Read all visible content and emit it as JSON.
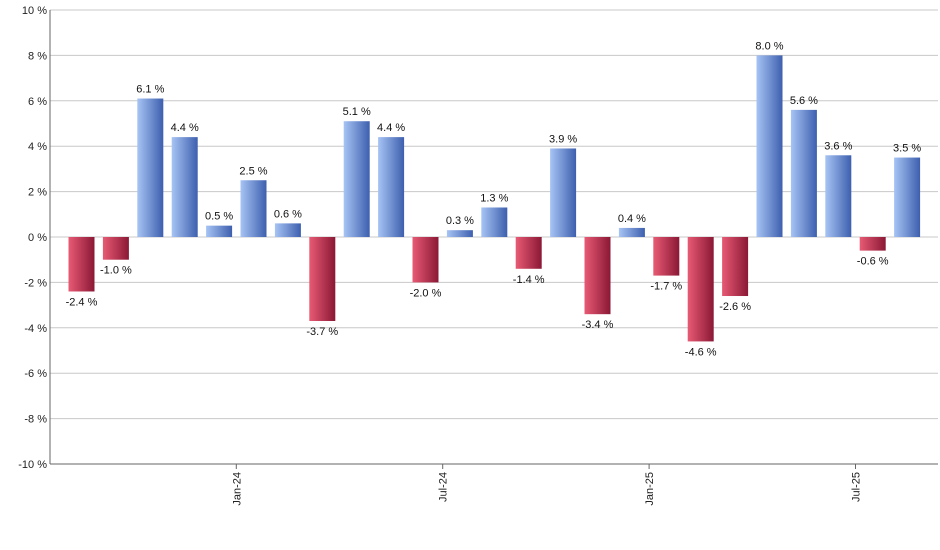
{
  "chart_data": {
    "type": "bar",
    "title": "",
    "xlabel": "",
    "ylabel": "",
    "ylim": [
      -10,
      10
    ],
    "y_ticks": [
      10,
      8,
      6,
      4,
      2,
      0,
      -2,
      -4,
      -6,
      -8,
      -10
    ],
    "y_tick_labels": [
      "10 %",
      "8 %",
      "6 %",
      "4 %",
      "2 %",
      "0 %",
      "-2 %",
      "-4 %",
      "-6 %",
      "-8 %",
      "-10 %"
    ],
    "grid": true,
    "x_tick_labels": [
      {
        "label": "Jan-24",
        "after_bar": 4
      },
      {
        "label": "Jul-24",
        "after_bar": 10
      },
      {
        "label": "Jan-25",
        "after_bar": 16
      },
      {
        "label": "Jul-25",
        "after_bar": 22
      }
    ],
    "values": [
      -2.4,
      -1.0,
      6.1,
      4.4,
      0.5,
      2.5,
      0.6,
      -3.7,
      5.1,
      4.4,
      -2.0,
      0.3,
      1.3,
      -1.4,
      3.9,
      -3.4,
      0.4,
      -1.7,
      -4.6,
      -2.6,
      8.0,
      5.6,
      3.6,
      -0.6,
      3.5
    ],
    "value_labels": [
      "-2.4 %",
      "-1.0 %",
      "6.1 %",
      "4.4 %",
      "0.5 %",
      "2.5 %",
      "0.6 %",
      "-3.7 %",
      "5.1 %",
      "4.4 %",
      "-2.0 %",
      "0.3 %",
      "1.3 %",
      "-1.4 %",
      "3.9 %",
      "-3.4 %",
      "0.4 %",
      "-1.7 %",
      "-4.6 %",
      "-2.6 %",
      "8.0 %",
      "5.6 %",
      "3.6 %",
      "-0.6 %",
      "3.5 %"
    ],
    "colors": {
      "positive_light": "#a7c4f4",
      "positive_dark": "#3d5fae",
      "negative_light": "#e85a74",
      "negative_dark": "#8a1835",
      "grid": "#c8c8c8"
    }
  }
}
